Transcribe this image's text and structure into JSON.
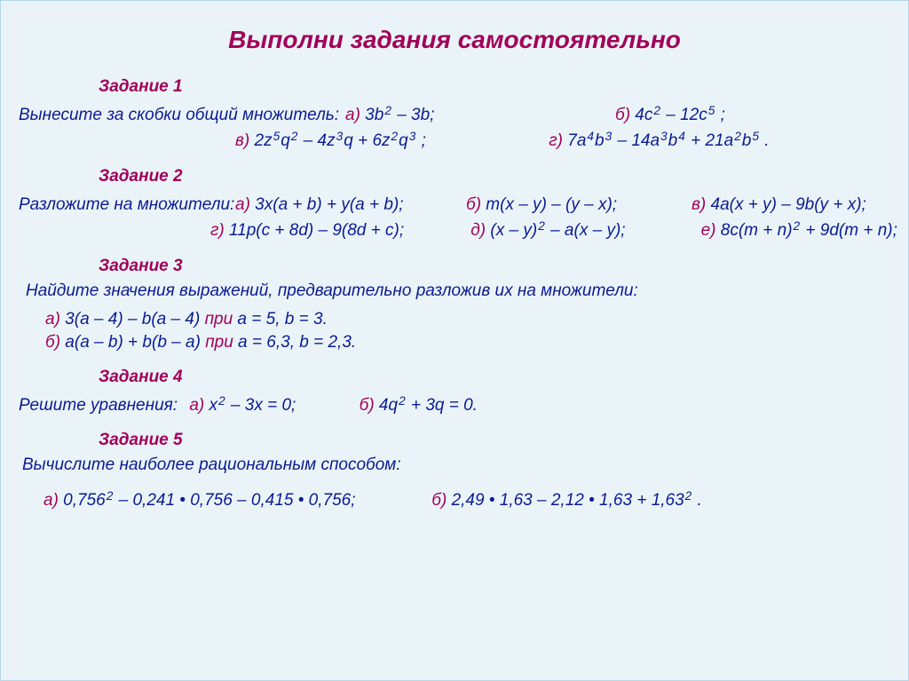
{
  "colors": {
    "background": "#eaf4f8",
    "accent": "#a2005a",
    "text": "#0b1a94",
    "border": "#b9d6e4"
  },
  "typography": {
    "font_family": "Comic Sans MS, Segoe Script, cursive",
    "title_size_pt": 21,
    "heading_size_pt": 14,
    "body_size_pt": 14
  },
  "page_title": "Выполни задания самостоятельно",
  "task1": {
    "heading": "Задание 1",
    "prompt": "Вынесите за скобки общий множитель:",
    "items": {
      "a": {
        "label": "а)",
        "pre": " 3b",
        "sup1": "2",
        "post": " – 3b;"
      },
      "b": {
        "label": "б)",
        "pre": " 4c",
        "sup1": "2",
        "mid": " – 12c",
        "sup2": "5",
        "post": " ;"
      },
      "v": {
        "label": "в)",
        "s1": " 2z",
        "e1": "5",
        "s2": "q",
        "e2": "2",
        "s3": " – 4z",
        "e3": "3",
        "s4": "q + 6z",
        "e4": "2",
        "s5": "q",
        "e5": "3",
        "s6": " ;"
      },
      "g": {
        "label": "г)",
        "s1": " 7a",
        "e1": "4",
        "s2": "b",
        "e2": "3",
        "s3": " – 14a",
        "e3": "3",
        "s4": "b",
        "e4": "4",
        "s5": " + 21a",
        "e5": "2",
        "s6": "b",
        "e6": "5",
        "s7": " ."
      }
    }
  },
  "task2": {
    "heading": "Задание 2",
    "prompt": "Разложите на множители:",
    "items": {
      "a": {
        "label": "а)",
        "text": " 3x(a + b) + y(a + b);"
      },
      "b": {
        "label": "б)",
        "text": " m(x – y) – (y – x);"
      },
      "v": {
        "label": "в)",
        "text": " 4a(x + y) – 9b(y + x);"
      },
      "g": {
        "label": "г)",
        "text": " 11p(c + 8d) – 9(8d + c);"
      },
      "d": {
        "label": "д)",
        "pre": " (x – y)",
        "sup": "2",
        "post": " – a(x – y);"
      },
      "e": {
        "label": "е)",
        "pre": " 8c(m + n)",
        "sup": "2",
        "post": " + 9d(m + n);"
      }
    }
  },
  "task3": {
    "heading": "Задание 3",
    "prompt": "Найдите значения выражений, предварительно разложив их на множители:",
    "line_a": {
      "label": "а)",
      "expr": " 3(a – 4) – b(a – 4)  ",
      "cond_label": "при",
      "cond": " a = 5, b = 3."
    },
    "line_b": {
      "label": "б)",
      "expr": " a(a – b) + b(b – a)  ",
      "cond_label": "при",
      "cond": " a = 6,3, b = 2,3."
    }
  },
  "task4": {
    "heading": "Задание 4",
    "prompt": "Решите уравнения:",
    "a": {
      "label": "а)",
      "pre": " x",
      "sup": "2",
      "post": " – 3x = 0;"
    },
    "b": {
      "label": "б)",
      "pre": " 4q",
      "sup": "2",
      "post": " + 3q = 0."
    }
  },
  "task5": {
    "heading": "Задание 5",
    "prompt": "Вычислите наиболее рациональным способом:",
    "a": {
      "label": "а)",
      "pre": " 0,756",
      "sup": "2",
      "post": " – 0,241 • 0,756 – 0,415 • 0,756;"
    },
    "b": {
      "label": "б)",
      "pre": " 2,49 • 1,63 – 2,12 • 1,63 + 1,63",
      "sup": "2",
      "post": " ."
    }
  }
}
